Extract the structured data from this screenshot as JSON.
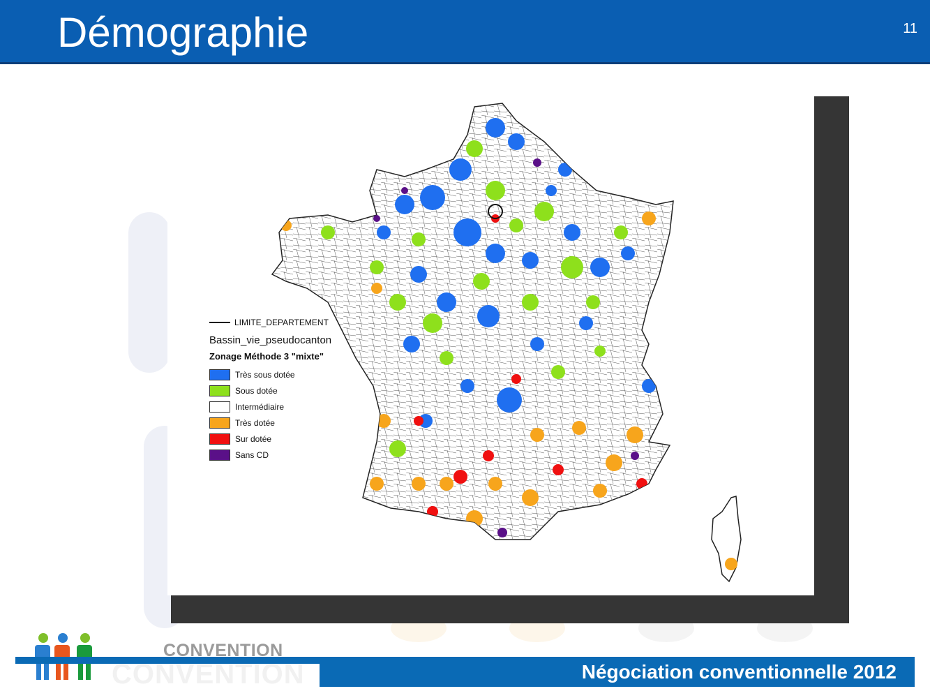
{
  "header": {
    "title": "Démographie",
    "page_number": "11",
    "background_color": "#0a5eb2"
  },
  "map": {
    "legend": {
      "boundary_label": "LIMITE_DEPARTEMENT",
      "layer_name": "Bassin_vie_pseudocanton",
      "zoning_title": "Zonage Méthode 3 \"mixte\"",
      "categories": [
        {
          "label": "Très sous dotée",
          "color": "#1f6ff0"
        },
        {
          "label": "Sous dotée",
          "color": "#8ee01c"
        },
        {
          "label": "Intermédiaire",
          "color": "#ffffff"
        },
        {
          "label": "Très dotée",
          "color": "#f7a51c"
        },
        {
          "label": "Sur dotée",
          "color": "#f01010"
        },
        {
          "label": "Sans CD",
          "color": "#5a1088"
        }
      ]
    }
  },
  "footer": {
    "logo_text": "CONVENTION",
    "logo_ghost_text": "CONVENTION",
    "banner_text": "Négociation conventionnelle 2012"
  },
  "logo_colors": [
    "#7fbf2a",
    "#2a7fd0",
    "#e8561e",
    "#1a9a3c"
  ]
}
